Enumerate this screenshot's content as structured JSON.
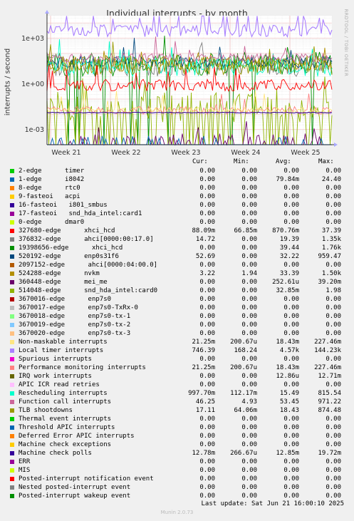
{
  "title": "Individual interrupts - by month",
  "side_label": "RRDTOOL / TOBI OETIKER",
  "chart_data": {
    "type": "line",
    "ylabel": "interrupts / second",
    "yscale": "log",
    "ylim": [
      0.0001,
      30000
    ],
    "y_ticks": [
      {
        "value": 1000,
        "label": "1e+03"
      },
      {
        "value": 1,
        "label": "1e+00"
      },
      {
        "value": 0.001,
        "label": "1e-03"
      }
    ],
    "x_ticks": [
      "Week 21",
      "Week 22",
      "Week 23",
      "Week 24",
      "Week 25"
    ],
    "grid": true
  },
  "legend_header": {
    "cur": "Cur:",
    "min": "Min:",
    "avg": "Avg:",
    "max": "Max:"
  },
  "legend": [
    {
      "name": "2-edge      timer",
      "color": "#00cc00",
      "cur": "0.00",
      "min": "0.00",
      "avg": "0.00",
      "max": "0.00"
    },
    {
      "name": "1-edge      i8042",
      "color": "#0066b3",
      "cur": "0.00",
      "min": "0.00",
      "avg": "79.84m",
      "max": "24.40"
    },
    {
      "name": "8-edge      rtc0",
      "color": "#ff8000",
      "cur": "0.00",
      "min": "0.00",
      "avg": "0.00",
      "max": "0.00"
    },
    {
      "name": "9-fasteoi   acpi",
      "color": "#ffcc00",
      "cur": "0.00",
      "min": "0.00",
      "avg": "0.00",
      "max": "0.00"
    },
    {
      "name": "16-fasteoi   i801_smbus",
      "color": "#330099",
      "cur": "0.00",
      "min": "0.00",
      "avg": "0.00",
      "max": "0.00"
    },
    {
      "name": "17-fasteoi   snd_hda_intel:card1",
      "color": "#990099",
      "cur": "0.00",
      "min": "0.00",
      "avg": "0.00",
      "max": "0.00"
    },
    {
      "name": "0-edge      dmar0",
      "color": "#ccff00",
      "cur": "0.00",
      "min": "0.00",
      "avg": "0.00",
      "max": "0.00"
    },
    {
      "name": "327680-edge      xhci_hcd",
      "color": "#ff0000",
      "cur": "88.09m",
      "min": "66.85m",
      "avg": "870.76m",
      "max": "37.39"
    },
    {
      "name": "376832-edge      ahci[0000:00:17.0]",
      "color": "#808080",
      "cur": "14.72",
      "min": "0.00",
      "avg": "19.39",
      "max": "1.35k"
    },
    {
      "name": "19398656-edge      xhci_hcd",
      "color": "#008f00",
      "cur": "0.00",
      "min": "0.00",
      "avg": "39.44",
      "max": "1.76k"
    },
    {
      "name": "520192-edge      enp0s31f6",
      "color": "#00487d",
      "cur": "52.69",
      "min": "0.00",
      "avg": "32.22",
      "max": "959.47"
    },
    {
      "name": "2097152-edge      ahci[0000:04:00.0]",
      "color": "#b35a00",
      "cur": "0.00",
      "min": "0.00",
      "avg": "0.00",
      "max": "0.00"
    },
    {
      "name": "524288-edge      nvkm",
      "color": "#b38f00",
      "cur": "3.22",
      "min": "1.94",
      "avg": "33.39",
      "max": "1.50k"
    },
    {
      "name": "360448-edge      mei_me",
      "color": "#6b006b",
      "cur": "0.00",
      "min": "0.00",
      "avg": "252.61u",
      "max": "39.20m"
    },
    {
      "name": "514048-edge      snd_hda_intel:card0",
      "color": "#8fb300",
      "cur": "0.00",
      "min": "0.00",
      "avg": "32.85m",
      "max": "1.98"
    },
    {
      "name": "3670016-edge      enp7s0",
      "color": "#b30000",
      "cur": "0.00",
      "min": "0.00",
      "avg": "0.00",
      "max": "0.00"
    },
    {
      "name": "3670017-edge      enp7s0-TxRx-0",
      "color": "#bebebe",
      "cur": "0.00",
      "min": "0.00",
      "avg": "0.00",
      "max": "0.00"
    },
    {
      "name": "3670018-edge      enp7s0-tx-1",
      "color": "#80ff80",
      "cur": "0.00",
      "min": "0.00",
      "avg": "0.00",
      "max": "0.00"
    },
    {
      "name": "3670019-edge      enp7s0-tx-2",
      "color": "#80c9ff",
      "cur": "0.00",
      "min": "0.00",
      "avg": "0.00",
      "max": "0.00"
    },
    {
      "name": "3670020-edge      enp7s0-tx-3",
      "color": "#ffc080",
      "cur": "0.00",
      "min": "0.00",
      "avg": "0.00",
      "max": "0.00"
    },
    {
      "name": "Non-maskable interrupts",
      "color": "#ffe680",
      "cur": "21.25m",
      "min": "200.67u",
      "avg": "18.43m",
      "max": "227.46m"
    },
    {
      "name": "Local timer interrupts",
      "color": "#aa80ff",
      "cur": "746.39",
      "min": "168.24",
      "avg": "4.57k",
      "max": "144.23k"
    },
    {
      "name": "Spurious interrupts",
      "color": "#ee00cc",
      "cur": "0.00",
      "min": "0.00",
      "avg": "0.00",
      "max": "0.00"
    },
    {
      "name": "Performance monitoring interrupts",
      "color": "#ff8080",
      "cur": "21.25m",
      "min": "200.67u",
      "avg": "18.43m",
      "max": "227.46m"
    },
    {
      "name": "IRQ work interrupts",
      "color": "#666600",
      "cur": "0.00",
      "min": "0.00",
      "avg": "12.86u",
      "max": "12.71m"
    },
    {
      "name": "APIC ICR read retries",
      "color": "#ffbfff",
      "cur": "0.00",
      "min": "0.00",
      "avg": "0.00",
      "max": "0.00"
    },
    {
      "name": "Rescheduling interrupts",
      "color": "#00ffcc",
      "cur": "997.70m",
      "min": "112.17m",
      "avg": "15.49",
      "max": "815.54"
    },
    {
      "name": "Function call interrupts",
      "color": "#cc6699",
      "cur": "46.25",
      "min": "4.93",
      "avg": "53.45",
      "max": "971.22"
    },
    {
      "name": "TLB shootdowns",
      "color": "#999900",
      "cur": "17.11",
      "min": "64.06m",
      "avg": "18.43",
      "max": "874.48"
    },
    {
      "name": "Thermal event interrupts",
      "color": "#00cc00",
      "cur": "0.00",
      "min": "0.00",
      "avg": "0.00",
      "max": "0.00"
    },
    {
      "name": "Threshold APIC interrupts",
      "color": "#0066b3",
      "cur": "0.00",
      "min": "0.00",
      "avg": "0.00",
      "max": "0.00"
    },
    {
      "name": "Deferred Error APIC interrupts",
      "color": "#ff8000",
      "cur": "0.00",
      "min": "0.00",
      "avg": "0.00",
      "max": "0.00"
    },
    {
      "name": "Machine check exceptions",
      "color": "#ffcc00",
      "cur": "0.00",
      "min": "0.00",
      "avg": "0.00",
      "max": "0.00"
    },
    {
      "name": "Machine check polls",
      "color": "#330099",
      "cur": "12.78m",
      "min": "266.67u",
      "avg": "12.85m",
      "max": "19.72m"
    },
    {
      "name": "ERR",
      "color": "#990099",
      "cur": "0.00",
      "min": "0.00",
      "avg": "0.00",
      "max": "0.00"
    },
    {
      "name": "MIS",
      "color": "#ccff00",
      "cur": "0.00",
      "min": "0.00",
      "avg": "0.00",
      "max": "0.00"
    },
    {
      "name": "Posted-interrupt notification event",
      "color": "#ff0000",
      "cur": "0.00",
      "min": "0.00",
      "avg": "0.00",
      "max": "0.00"
    },
    {
      "name": "Nested posted-interrupt event",
      "color": "#808080",
      "cur": "0.00",
      "min": "0.00",
      "avg": "0.00",
      "max": "0.00"
    },
    {
      "name": "Posted-interrupt wakeup event",
      "color": "#008f00",
      "cur": "0.00",
      "min": "0.00",
      "avg": "0.00",
      "max": "0.00"
    }
  ],
  "last_update": "Last update: Sat Jun 21 16:00:10 2025",
  "footer": "Munin 2.0.73"
}
